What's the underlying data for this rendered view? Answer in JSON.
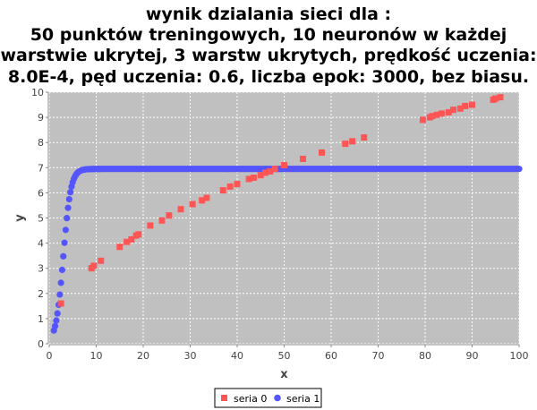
{
  "chart_data": {
    "type": "scatter",
    "title_lines": [
      "wynik dzialania sieci dla :",
      "50 punktów treningowych, 10 neuronów w każdej",
      "warstwie ukrytej, 3 warstw ukrytych, prędkość uczenia:",
      "8.0E-4, pęd uczenia: 0.6, liczba epok: 3000, bez biasu."
    ],
    "xlabel": "x",
    "ylabel": "y",
    "xlim": [
      0,
      100
    ],
    "ylim": [
      0,
      10
    ],
    "xticks": [
      0,
      10,
      20,
      30,
      40,
      50,
      60,
      70,
      80,
      90,
      100
    ],
    "yticks": [
      0,
      1,
      2,
      3,
      4,
      5,
      6,
      7,
      8,
      9,
      10
    ],
    "grid": true,
    "plot_background": "#c0c0c0",
    "legend_position": "bottom-center",
    "series": [
      {
        "name": "seria 0",
        "marker": "square",
        "color": "#ff5555",
        "x": [
          2.5,
          9.0,
          9.5,
          11.0,
          15.0,
          16.5,
          17.5,
          18.5,
          19.0,
          21.5,
          24.0,
          25.5,
          28.0,
          30.5,
          32.5,
          33.5,
          37.0,
          38.5,
          40.0,
          42.5,
          43.5,
          45.0,
          46.0,
          47.0,
          48.0,
          50.0,
          54.0,
          58.0,
          63.0,
          64.5,
          67.0,
          79.5,
          81.0,
          81.5,
          82.5,
          83.5,
          85.0,
          86.0,
          87.5,
          88.5,
          90.0,
          94.5,
          95.0,
          96.0
        ],
        "y": [
          1.6,
          3.0,
          3.1,
          3.3,
          3.85,
          4.05,
          4.15,
          4.3,
          4.35,
          4.7,
          4.9,
          5.1,
          5.35,
          5.55,
          5.7,
          5.8,
          6.1,
          6.25,
          6.35,
          6.55,
          6.6,
          6.7,
          6.8,
          6.85,
          6.95,
          7.1,
          7.35,
          7.6,
          7.95,
          8.05,
          8.2,
          8.9,
          9.0,
          9.05,
          9.1,
          9.15,
          9.2,
          9.3,
          9.35,
          9.45,
          9.5,
          9.7,
          9.75,
          9.8
        ]
      },
      {
        "name": "seria 1",
        "marker": "circle",
        "color": "#5555ff",
        "curve": {
          "form": "logistic",
          "L": 6.95,
          "k": 1.25,
          "x0": 3.0,
          "x_range": [
            1,
            100
          ]
        }
      }
    ]
  }
}
